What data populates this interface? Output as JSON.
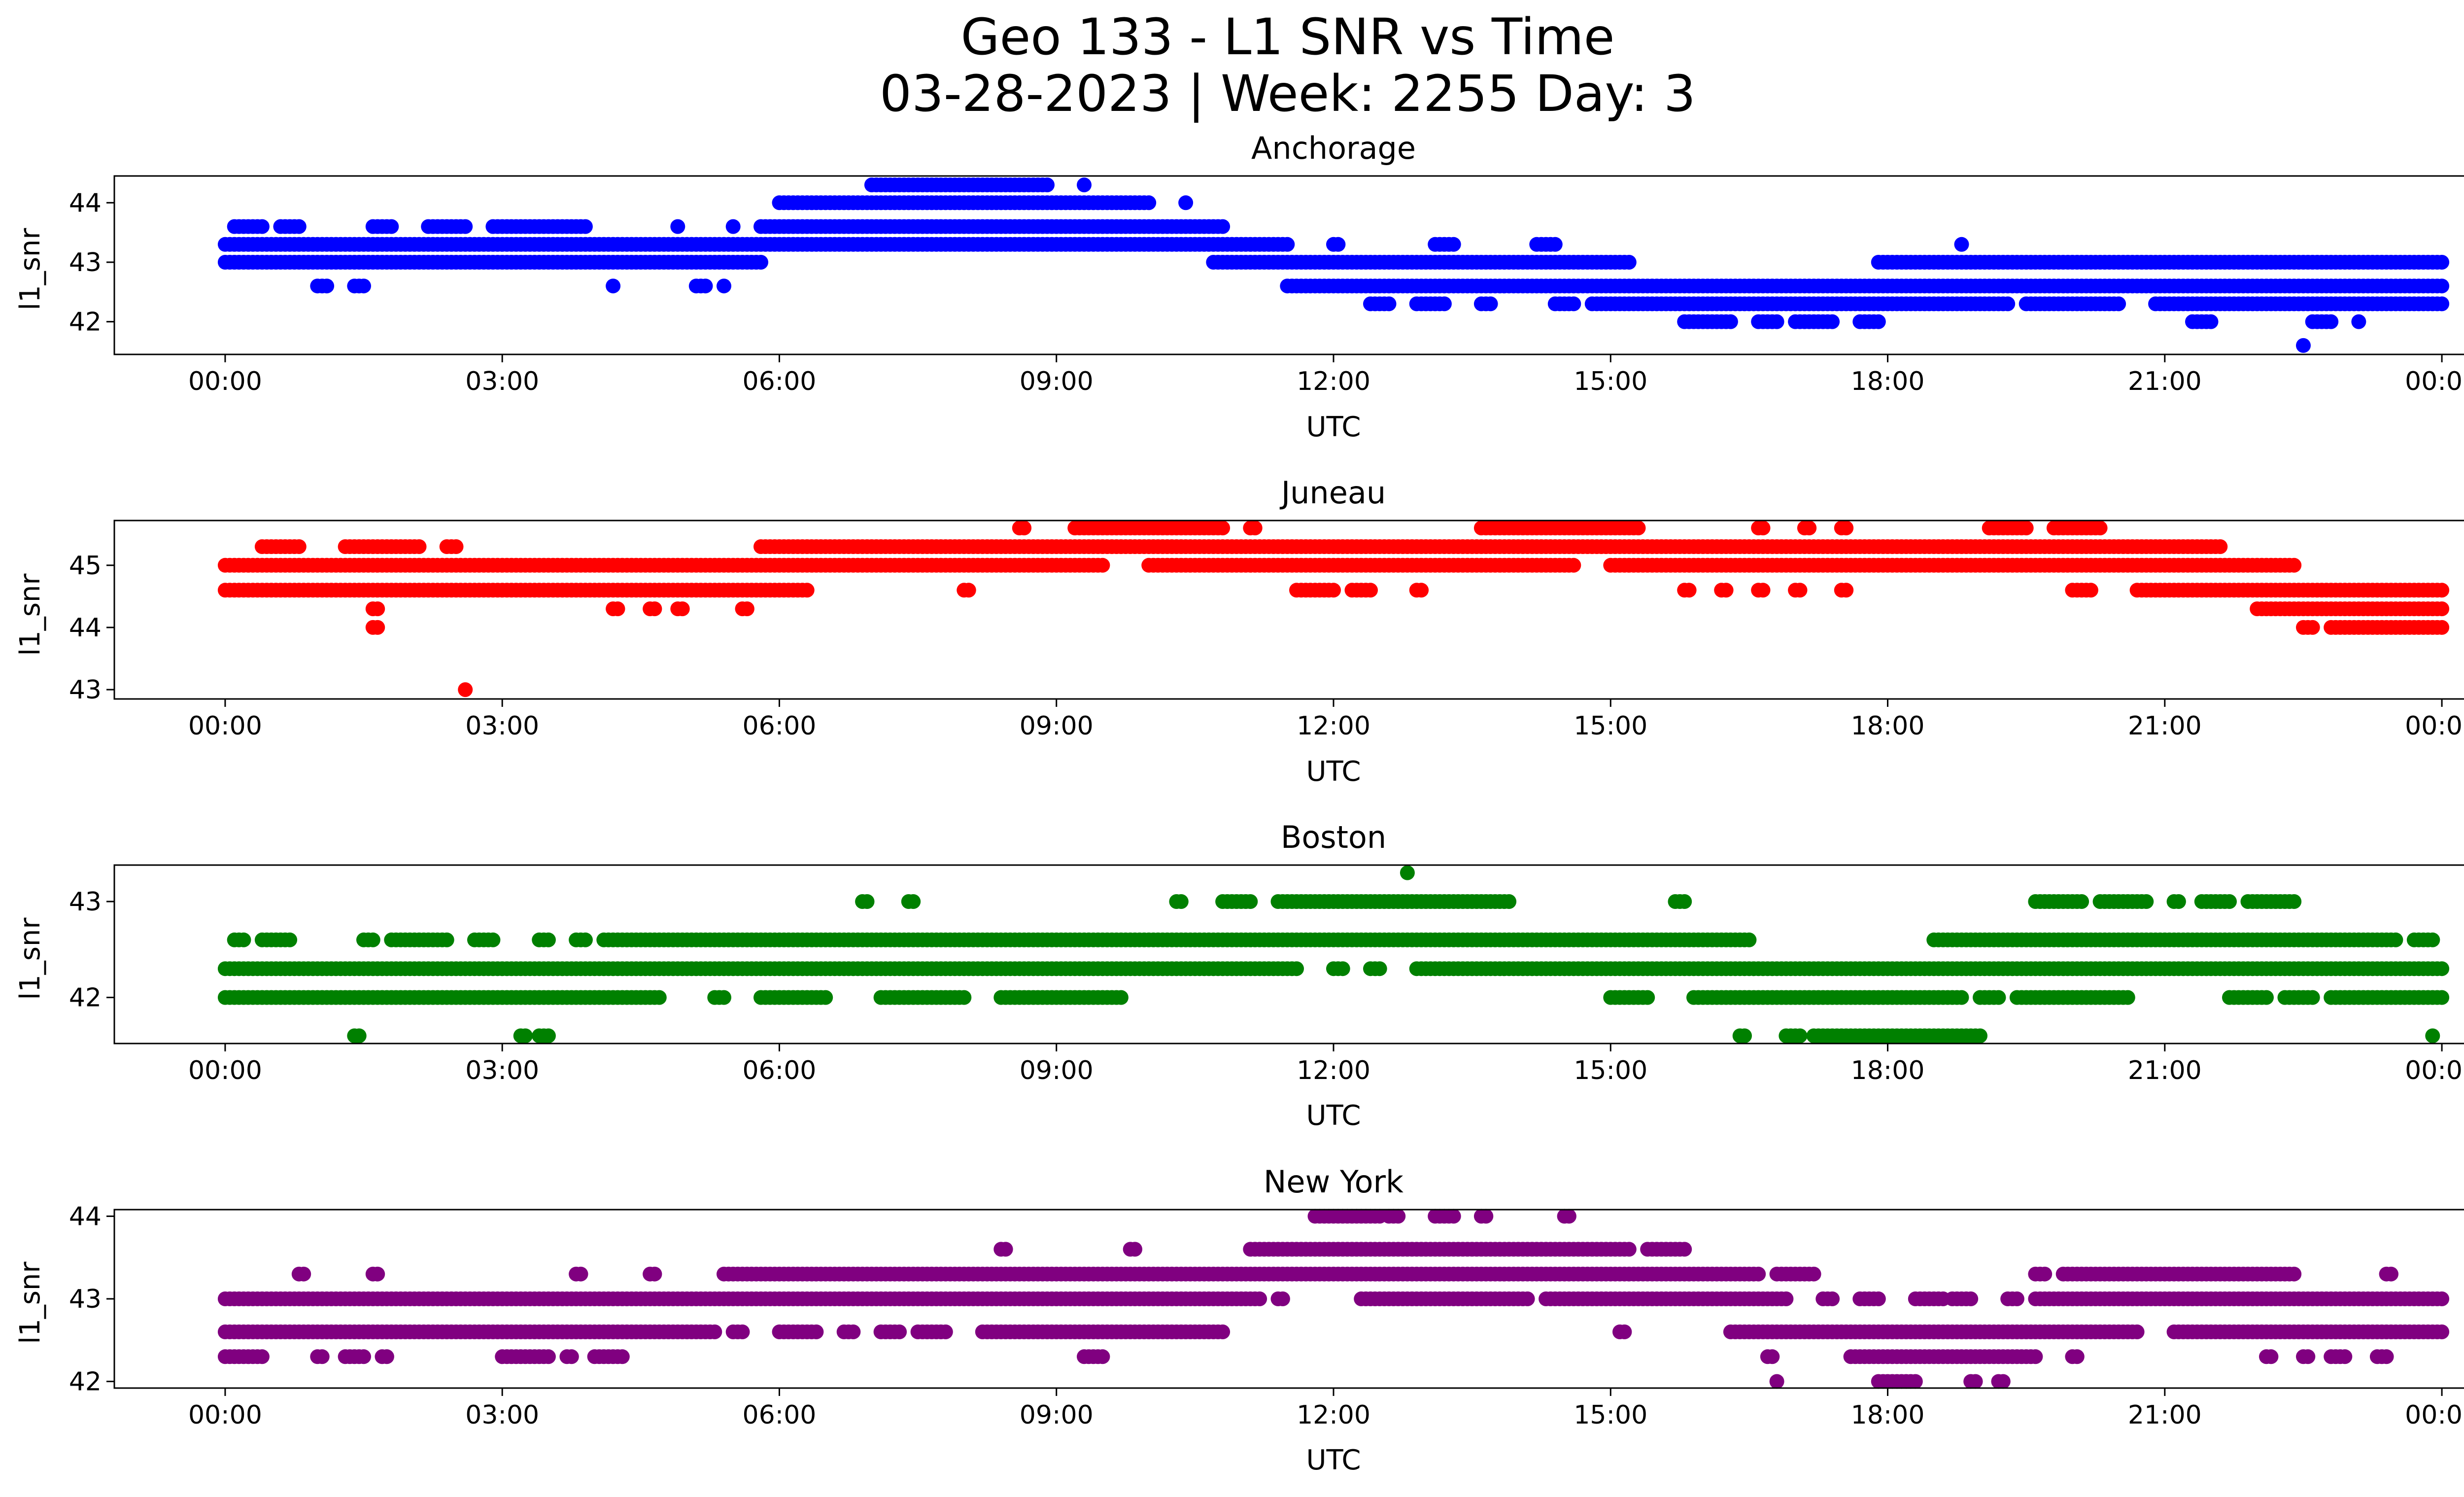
{
  "figure": {
    "title_line1": "Geo 133 - L1 SNR vs Time",
    "title_line2": "03-28-2023 | Week: 2255 Day: 3"
  },
  "chart_data": [
    {
      "type": "scatter",
      "title": "Anchorage",
      "xlabel": "UTC",
      "ylabel": "l1_snr",
      "color": "#0000ff",
      "xlim": [
        -1.2,
        25.2
      ],
      "ylim": [
        41.45,
        44.45
      ],
      "xticks": [
        "00:00",
        "03:00",
        "06:00",
        "09:00",
        "12:00",
        "15:00",
        "18:00",
        "21:00",
        "00:00"
      ],
      "yticks": [
        "42",
        "43",
        "44"
      ],
      "levels": [
        {
          "y": 43.3,
          "ranges": [
            [
              0.0,
              11.5
            ],
            [
              12.0,
              12.05
            ],
            [
              13.1,
              13.3
            ],
            [
              14.2,
              14.4
            ],
            [
              18.8,
              18.8
            ]
          ]
        },
        {
          "y": 43.0,
          "ranges": [
            [
              0.0,
              5.8
            ],
            [
              10.7,
              15.2
            ],
            [
              17.9,
              24.0
            ]
          ]
        },
        {
          "y": 43.6,
          "ranges": [
            [
              0.1,
              0.4
            ],
            [
              0.6,
              0.8
            ],
            [
              1.6,
              1.8
            ],
            [
              2.2,
              2.6
            ],
            [
              2.9,
              3.9
            ],
            [
              4.9,
              4.9
            ],
            [
              5.5,
              5.5
            ],
            [
              5.8,
              10.8
            ]
          ]
        },
        {
          "y": 44.0,
          "ranges": [
            [
              6.0,
              10.0
            ],
            [
              10.4,
              10.4
            ]
          ]
        },
        {
          "y": 44.3,
          "ranges": [
            [
              7.0,
              8.9
            ],
            [
              9.3,
              9.3
            ]
          ]
        },
        {
          "y": 42.6,
          "ranges": [
            [
              1.0,
              1.1
            ],
            [
              1.4,
              1.5
            ],
            [
              4.2,
              4.2
            ],
            [
              5.1,
              5.2
            ],
            [
              5.4,
              5.4
            ],
            [
              11.5,
              24.0
            ]
          ]
        },
        {
          "y": 42.3,
          "ranges": [
            [
              12.4,
              12.6
            ],
            [
              12.9,
              13.2
            ],
            [
              13.6,
              13.7
            ],
            [
              14.4,
              14.6
            ],
            [
              14.8,
              19.3
            ],
            [
              19.5,
              20.5
            ],
            [
              20.9,
              24.0
            ]
          ]
        },
        {
          "y": 42.0,
          "ranges": [
            [
              15.8,
              16.3
            ],
            [
              16.6,
              16.8
            ],
            [
              17.0,
              17.4
            ],
            [
              17.7,
              17.9
            ],
            [
              21.3,
              21.5
            ],
            [
              22.6,
              22.8
            ],
            [
              23.1,
              23.1
            ]
          ]
        },
        {
          "y": 41.6,
          "ranges": [
            [
              22.5,
              22.5
            ]
          ]
        }
      ]
    },
    {
      "type": "scatter",
      "title": "Juneau",
      "xlabel": "UTC",
      "ylabel": "l1_snr",
      "color": "#ff0000",
      "xlim": [
        -1.2,
        25.2
      ],
      "ylim": [
        42.85,
        45.72
      ],
      "xticks": [
        "00:00",
        "03:00",
        "06:00",
        "09:00",
        "12:00",
        "15:00",
        "18:00",
        "21:00",
        "00:00"
      ],
      "yticks": [
        "43",
        "44",
        "45"
      ],
      "levels": [
        {
          "y": 45.0,
          "ranges": [
            [
              0.0,
              9.5
            ],
            [
              10.0,
              14.6
            ],
            [
              15.0,
              22.4
            ]
          ]
        },
        {
          "y": 44.6,
          "ranges": [
            [
              0.0,
              6.3
            ],
            [
              8.0,
              8.05
            ],
            [
              11.6,
              12.0
            ],
            [
              12.2,
              12.4
            ],
            [
              12.9,
              12.95
            ],
            [
              15.8,
              15.85
            ],
            [
              16.2,
              16.25
            ],
            [
              16.6,
              16.65
            ],
            [
              17.0,
              17.05
            ],
            [
              17.5,
              17.55
            ],
            [
              20.0,
              20.2
            ],
            [
              20.7,
              24.0
            ]
          ]
        },
        {
          "y": 45.3,
          "ranges": [
            [
              0.4,
              0.8
            ],
            [
              1.3,
              2.1
            ],
            [
              2.4,
              2.5
            ],
            [
              5.8,
              21.6
            ]
          ]
        },
        {
          "y": 45.6,
          "ranges": [
            [
              8.6,
              8.65
            ],
            [
              9.2,
              10.8
            ],
            [
              11.1,
              11.15
            ],
            [
              13.6,
              15.3
            ],
            [
              16.6,
              16.65
            ],
            [
              17.1,
              17.15
            ],
            [
              17.5,
              17.55
            ],
            [
              19.1,
              19.5
            ],
            [
              19.8,
              20.3
            ]
          ]
        },
        {
          "y": 44.3,
          "ranges": [
            [
              1.6,
              1.65
            ],
            [
              4.2,
              4.25
            ],
            [
              4.6,
              4.65
            ],
            [
              4.9,
              4.95
            ],
            [
              5.6,
              5.65
            ],
            [
              22.0,
              24.0
            ]
          ]
        },
        {
          "y": 44.0,
          "ranges": [
            [
              1.6,
              1.65
            ],
            [
              22.5,
              22.6
            ],
            [
              22.8,
              24.0
            ]
          ]
        },
        {
          "y": 43.0,
          "ranges": [
            [
              2.6,
              2.6
            ]
          ]
        }
      ]
    },
    {
      "type": "scatter",
      "title": "Boston",
      "xlabel": "UTC",
      "ylabel": "l1_snr",
      "color": "#008000",
      "xlim": [
        -1.2,
        25.2
      ],
      "ylim": [
        41.52,
        43.38
      ],
      "xticks": [
        "00:00",
        "03:00",
        "06:00",
        "09:00",
        "12:00",
        "15:00",
        "18:00",
        "21:00",
        "00:00"
      ],
      "yticks": [
        "42",
        "43"
      ],
      "levels": [
        {
          "y": 42.3,
          "ranges": [
            [
              0.0,
              11.6
            ],
            [
              12.0,
              12.1
            ],
            [
              12.4,
              12.5
            ],
            [
              12.9,
              24.0
            ]
          ]
        },
        {
          "y": 42.6,
          "ranges": [
            [
              0.1,
              0.2
            ],
            [
              0.4,
              0.7
            ],
            [
              1.5,
              1.6
            ],
            [
              1.8,
              2.4
            ],
            [
              2.7,
              2.9
            ],
            [
              3.4,
              3.5
            ],
            [
              3.8,
              3.9
            ],
            [
              4.1,
              16.5
            ],
            [
              18.5,
              23.5
            ],
            [
              23.7,
              23.9
            ]
          ]
        },
        {
          "y": 42.0,
          "ranges": [
            [
              0.0,
              4.7
            ],
            [
              5.3,
              5.4
            ],
            [
              5.8,
              6.5
            ],
            [
              7.1,
              8.0
            ],
            [
              8.4,
              9.7
            ],
            [
              15.0,
              15.4
            ],
            [
              15.9,
              18.8
            ],
            [
              19.0,
              19.2
            ],
            [
              19.4,
              20.6
            ],
            [
              21.7,
              22.1
            ],
            [
              22.3,
              22.6
            ],
            [
              22.8,
              24.0
            ]
          ]
        },
        {
          "y": 43.0,
          "ranges": [
            [
              6.9,
              6.95
            ],
            [
              7.4,
              7.45
            ],
            [
              10.3,
              10.35
            ],
            [
              10.8,
              11.1
            ],
            [
              11.4,
              13.9
            ],
            [
              15.7,
              15.8
            ],
            [
              19.6,
              20.1
            ],
            [
              20.3,
              20.8
            ],
            [
              21.1,
              21.15
            ],
            [
              21.4,
              21.7
            ],
            [
              21.9,
              22.4
            ]
          ]
        },
        {
          "y": 43.3,
          "ranges": [
            [
              12.8,
              12.8
            ]
          ]
        },
        {
          "y": 41.6,
          "ranges": [
            [
              1.4,
              1.45
            ],
            [
              3.2,
              3.25
            ],
            [
              3.4,
              3.5
            ],
            [
              16.4,
              16.45
            ],
            [
              16.9,
              17.05
            ],
            [
              17.2,
              19.0
            ],
            [
              23.9,
              23.9
            ]
          ]
        }
      ]
    },
    {
      "type": "scatter",
      "title": "New York",
      "xlabel": "UTC",
      "ylabel": "l1_snr",
      "color": "#800080",
      "xlim": [
        -1.2,
        25.2
      ],
      "ylim": [
        41.92,
        44.08
      ],
      "xticks": [
        "00:00",
        "03:00",
        "06:00",
        "09:00",
        "12:00",
        "15:00",
        "18:00",
        "21:00",
        "00:00"
      ],
      "yticks": [
        "42",
        "43",
        "44"
      ],
      "levels": [
        {
          "y": 43.0,
          "ranges": [
            [
              0.0,
              11.2
            ],
            [
              11.4,
              11.45
            ],
            [
              12.3,
              14.1
            ],
            [
              14.3,
              16.9
            ],
            [
              17.3,
              17.4
            ],
            [
              17.7,
              17.9
            ],
            [
              18.3,
              18.6
            ],
            [
              18.7,
              18.9
            ],
            [
              19.3,
              19.4
            ],
            [
              19.6,
              24.0
            ]
          ]
        },
        {
          "y": 42.6,
          "ranges": [
            [
              0.0,
              5.3
            ],
            [
              5.5,
              5.6
            ],
            [
              6.0,
              6.4
            ],
            [
              6.7,
              6.8
            ],
            [
              7.1,
              7.3
            ],
            [
              7.5,
              7.8
            ],
            [
              8.2,
              10.8
            ],
            [
              15.1,
              15.15
            ],
            [
              16.3,
              20.7
            ],
            [
              21.1,
              24.0
            ]
          ]
        },
        {
          "y": 43.3,
          "ranges": [
            [
              0.8,
              0.85
            ],
            [
              1.6,
              1.65
            ],
            [
              3.8,
              3.85
            ],
            [
              4.6,
              4.65
            ],
            [
              5.4,
              16.6
            ],
            [
              16.8,
              17.2
            ],
            [
              19.6,
              19.7
            ],
            [
              19.9,
              22.4
            ],
            [
              23.4,
              23.45
            ]
          ]
        },
        {
          "y": 43.6,
          "ranges": [
            [
              8.4,
              8.45
            ],
            [
              9.8,
              9.85
            ],
            [
              11.1,
              15.2
            ],
            [
              15.4,
              15.8
            ]
          ]
        },
        {
          "y": 44.0,
          "ranges": [
            [
              11.8,
              12.5
            ],
            [
              12.6,
              12.7
            ],
            [
              13.1,
              13.3
            ],
            [
              13.6,
              13.65
            ],
            [
              14.5,
              14.55
            ]
          ]
        },
        {
          "y": 42.3,
          "ranges": [
            [
              0.0,
              0.4
            ],
            [
              1.0,
              1.05
            ],
            [
              1.3,
              1.5
            ],
            [
              1.7,
              1.75
            ],
            [
              3.0,
              3.5
            ],
            [
              3.7,
              3.75
            ],
            [
              4.0,
              4.3
            ],
            [
              9.3,
              9.5
            ],
            [
              16.7,
              16.75
            ],
            [
              17.6,
              19.6
            ],
            [
              20.0,
              20.05
            ],
            [
              22.1,
              22.15
            ],
            [
              22.5,
              22.55
            ],
            [
              22.8,
              22.95
            ],
            [
              23.3,
              23.4
            ]
          ]
        },
        {
          "y": 42.0,
          "ranges": [
            [
              16.8,
              16.8
            ],
            [
              17.9,
              18.3
            ],
            [
              18.9,
              18.95
            ],
            [
              19.2,
              19.25
            ]
          ]
        }
      ]
    }
  ]
}
